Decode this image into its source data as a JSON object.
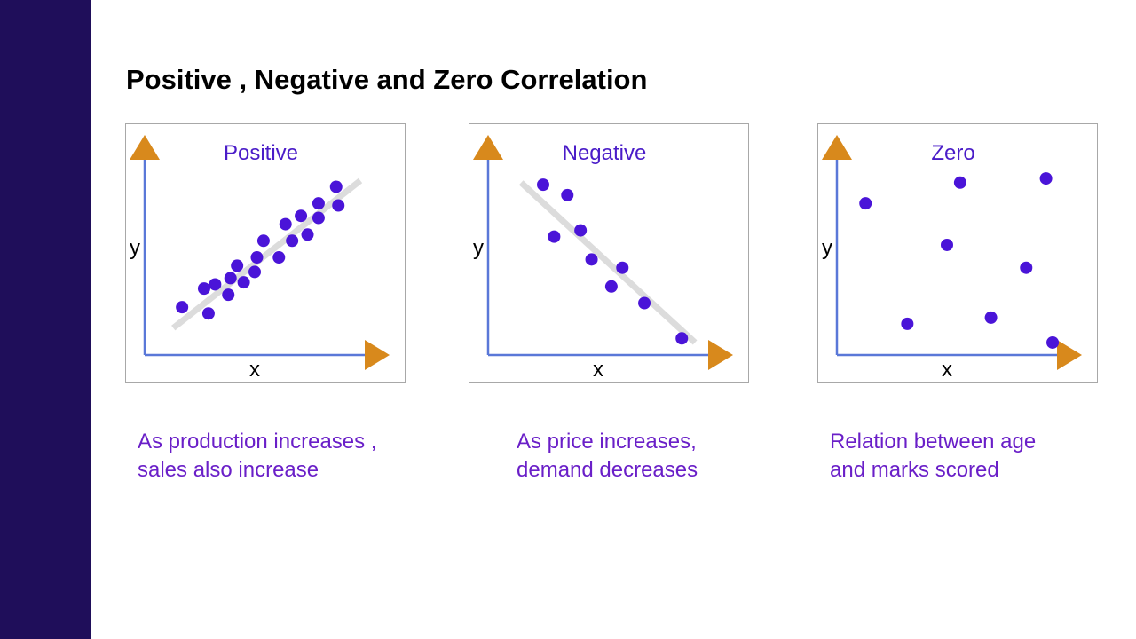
{
  "title": "Positive , Negative and Zero Correlation",
  "colors": {
    "sidebar": "#1f0e5a",
    "points": "#4a14d8",
    "axes": "#5a78d8",
    "arrows": "#d8891c",
    "trend": "#dcdcdc",
    "panel_title": "#4a1cc8",
    "caption": "#6a1fc8"
  },
  "chart_data": [
    {
      "type": "scatter",
      "title": "Positive",
      "xlabel": "x",
      "ylabel": "y",
      "xlim": [
        0,
        10
      ],
      "ylim": [
        0,
        10
      ],
      "grid": false,
      "trend_line": [
        [
          1.3,
          1.3
        ],
        [
          9.8,
          8.4
        ]
      ],
      "points": [
        [
          1.7,
          2.3
        ],
        [
          2.9,
          2.0
        ],
        [
          2.7,
          3.2
        ],
        [
          3.2,
          3.4
        ],
        [
          3.8,
          2.9
        ],
        [
          3.9,
          3.7
        ],
        [
          4.2,
          4.3
        ],
        [
          4.5,
          3.5
        ],
        [
          5.0,
          4.0
        ],
        [
          5.1,
          4.7
        ],
        [
          5.4,
          5.5
        ],
        [
          6.1,
          4.7
        ],
        [
          6.4,
          6.3
        ],
        [
          6.7,
          5.5
        ],
        [
          7.1,
          6.7
        ],
        [
          7.4,
          5.8
        ],
        [
          7.9,
          6.6
        ],
        [
          7.9,
          7.3
        ],
        [
          8.7,
          8.1
        ],
        [
          8.8,
          7.2
        ]
      ]
    },
    {
      "type": "scatter",
      "title": "Negative",
      "xlabel": "x",
      "ylabel": "y",
      "xlim": [
        0,
        10
      ],
      "ylim": [
        0,
        10
      ],
      "grid": false,
      "trend_line": [
        [
          1.5,
          8.3
        ],
        [
          9.4,
          0.6
        ]
      ],
      "points": [
        [
          2.5,
          8.2
        ],
        [
          3.6,
          7.7
        ],
        [
          3.0,
          5.7
        ],
        [
          4.2,
          6.0
        ],
        [
          4.7,
          4.6
        ],
        [
          6.1,
          4.2
        ],
        [
          5.6,
          3.3
        ],
        [
          7.1,
          2.5
        ],
        [
          8.8,
          0.8
        ]
      ]
    },
    {
      "type": "scatter",
      "title": "Zero",
      "xlabel": "x",
      "ylabel": "y",
      "xlim": [
        0,
        10
      ],
      "ylim": [
        0,
        10
      ],
      "grid": false,
      "trend_line": null,
      "points": [
        [
          1.3,
          7.3
        ],
        [
          5.6,
          8.3
        ],
        [
          9.5,
          8.5
        ],
        [
          5.0,
          5.3
        ],
        [
          8.6,
          4.2
        ],
        [
          3.2,
          1.5
        ],
        [
          7.0,
          1.8
        ],
        [
          9.8,
          0.6
        ]
      ]
    }
  ],
  "captions": [
    [
      "As production increases ,",
      "sales also increase"
    ],
    [
      "As price increases,",
      "demand decreases"
    ],
    [
      "Relation between age",
      "and marks scored"
    ]
  ]
}
